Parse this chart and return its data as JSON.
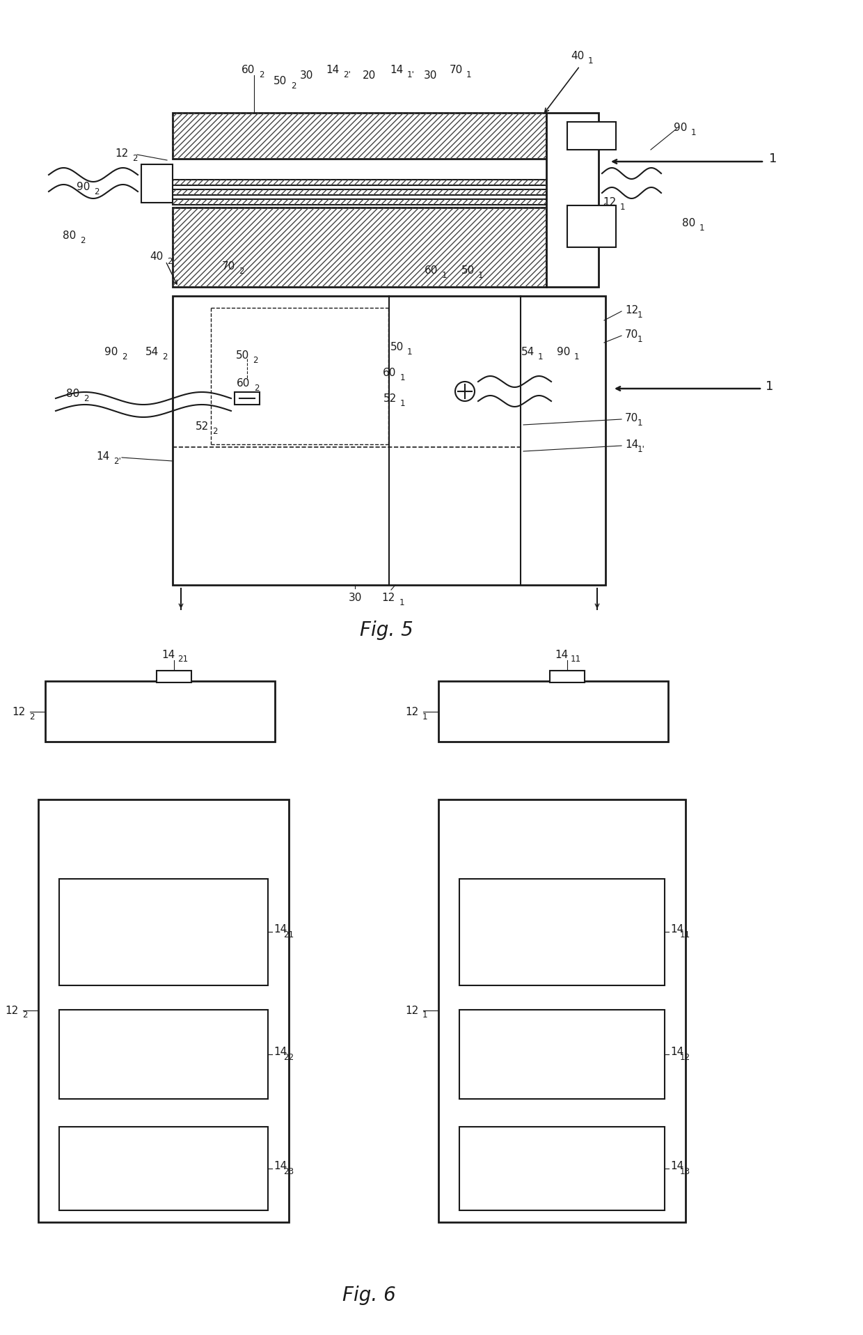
{
  "bg_color": "#ffffff",
  "line_color": "#1a1a1a",
  "hatch_color": "#444444",
  "fig5_title": "Fig. 5",
  "fig6_title": "Fig. 6",
  "fs": 11,
  "fs_title": 20
}
